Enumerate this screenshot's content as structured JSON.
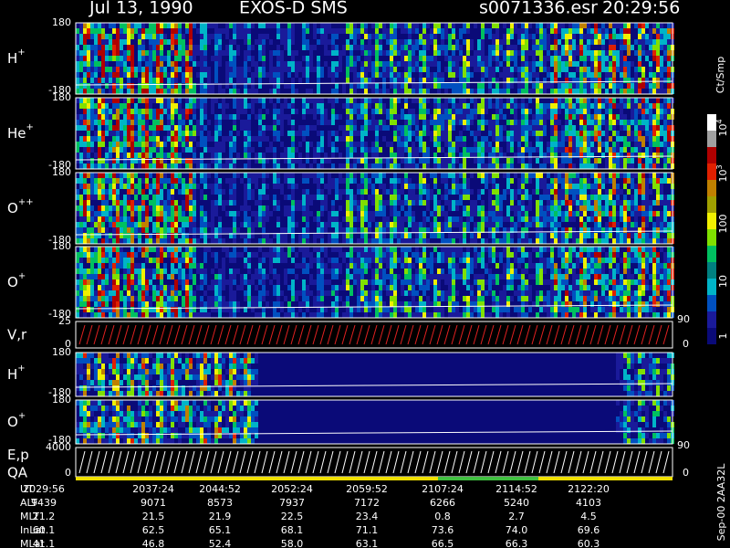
{
  "header": {
    "date": "Jul 13, 1990",
    "instrument": "EXOS-D SMS",
    "file": "s0071336.esr",
    "time": "20:29:56"
  },
  "panels": [
    {
      "label": "H",
      "sup": "+",
      "top": "180",
      "bottom": "-180"
    },
    {
      "label": "He",
      "sup": "+",
      "top": "180",
      "bottom": "-180"
    },
    {
      "label": "O",
      "sup": "++",
      "top": "180",
      "bottom": "-180"
    },
    {
      "label": "O",
      "sup": "+",
      "top": "180",
      "bottom": "-180"
    },
    {
      "label": "V,r",
      "top": "25",
      "bottom": "0",
      "right_top": "90",
      "right_bottom": "0"
    },
    {
      "label": "H",
      "sup": "+",
      "top": "180",
      "bottom": "-180"
    },
    {
      "label": "O",
      "sup": "+",
      "top": "180",
      "bottom": "-180"
    },
    {
      "label": "E,p",
      "label2": "QA",
      "top": "4000",
      "bottom": "0",
      "right_top": "90",
      "right_bottom": "0"
    }
  ],
  "colorbar": {
    "unit": "Ct/Smp",
    "labels": [
      {
        "base": "10",
        "exp": "4"
      },
      {
        "base": "10",
        "exp": "3"
      },
      {
        "base": "100"
      },
      {
        "base": "10"
      },
      {
        "base": "1"
      }
    ]
  },
  "footer": {
    "rows": [
      [
        "UT",
        "2029:56",
        "2037:24",
        "2044:52",
        "2052:24",
        "2059:52",
        "2107:24",
        "2114:52",
        "2122:20"
      ],
      [
        "ALT",
        "9439",
        "9071",
        "8573",
        "7937",
        "7172",
        "6266",
        "5240",
        "4103"
      ],
      [
        "MLT",
        "21.2",
        "21.5",
        "21.9",
        "22.5",
        "23.4",
        "0.8",
        "2.7",
        "4.5"
      ],
      [
        "InLat",
        "60.1",
        "62.5",
        "65.1",
        "68.1",
        "71.1",
        "73.6",
        "74.0",
        "69.6"
      ],
      [
        "MLat",
        "41.1",
        "46.8",
        "52.4",
        "58.0",
        "63.1",
        "66.5",
        "66.3",
        "60.3"
      ]
    ]
  },
  "side_text": "Sep-00 2AA32L"
}
